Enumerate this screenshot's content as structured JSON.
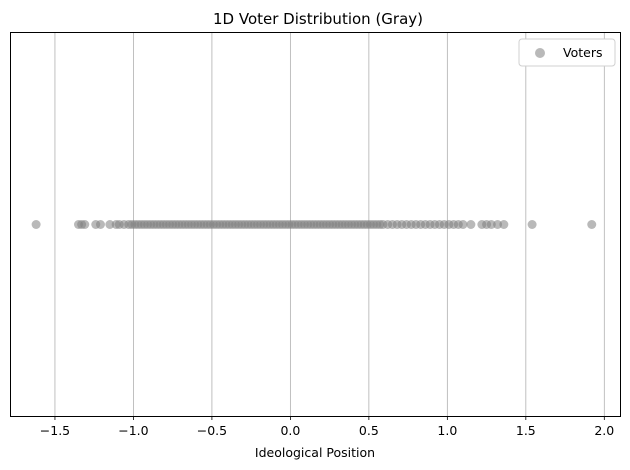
{
  "chart_data": {
    "type": "scatter",
    "title": "1D Voter Distribution (Gray)",
    "xlabel": "Ideological Position",
    "ylabel": "",
    "xlim": [
      -1.78,
      2.1
    ],
    "ylim": [
      -1,
      1
    ],
    "x_ticks": [
      -1.5,
      -1.0,
      -0.5,
      0.0,
      0.5,
      1.0,
      1.5,
      2.0
    ],
    "x_tick_labels": [
      "−1.5",
      "−1.0",
      "−0.5",
      "0.0",
      "0.5",
      "1.0",
      "1.5",
      "2.0"
    ],
    "grid": "vertical",
    "legend_position": "top-right",
    "series": [
      {
        "name": "Voters",
        "color": "#808080",
        "opacity": 0.55,
        "x": [
          -1.62,
          -1.35,
          -1.33,
          -1.31,
          -1.24,
          -1.21,
          -1.15,
          -1.11,
          -1.09,
          -1.06,
          -1.03,
          -1.01,
          -0.99,
          -0.97,
          -0.95,
          -0.93,
          -0.91,
          -0.89,
          -0.87,
          -0.85,
          -0.83,
          -0.81,
          -0.79,
          -0.77,
          -0.75,
          -0.73,
          -0.71,
          -0.69,
          -0.67,
          -0.65,
          -0.63,
          -0.61,
          -0.59,
          -0.57,
          -0.55,
          -0.53,
          -0.51,
          -0.49,
          -0.47,
          -0.45,
          -0.43,
          -0.41,
          -0.39,
          -0.37,
          -0.35,
          -0.33,
          -0.31,
          -0.29,
          -0.27,
          -0.25,
          -0.23,
          -0.21,
          -0.19,
          -0.17,
          -0.15,
          -0.13,
          -0.11,
          -0.09,
          -0.07,
          -0.05,
          -0.03,
          -0.01,
          0.01,
          0.03,
          0.05,
          0.07,
          0.09,
          0.11,
          0.13,
          0.15,
          0.17,
          0.19,
          0.21,
          0.23,
          0.25,
          0.27,
          0.29,
          0.31,
          0.33,
          0.35,
          0.37,
          0.39,
          0.41,
          0.43,
          0.45,
          0.47,
          0.49,
          0.51,
          0.53,
          0.55,
          0.57,
          0.59,
          0.62,
          0.65,
          0.68,
          0.71,
          0.74,
          0.77,
          0.8,
          0.83,
          0.86,
          0.89,
          0.92,
          0.95,
          0.98,
          1.01,
          1.04,
          1.07,
          1.1,
          1.15,
          1.22,
          1.25,
          1.28,
          1.32,
          1.36,
          1.54,
          1.92
        ],
        "y": 0
      }
    ]
  }
}
